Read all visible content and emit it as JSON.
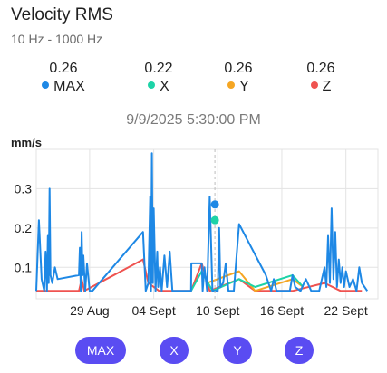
{
  "header": {
    "title": "Velocity RMS",
    "subtitle": "10 Hz - 1000 Hz"
  },
  "stats": [
    {
      "value": "0.26",
      "label": "MAX",
      "color": "#1e88e5"
    },
    {
      "value": "0.22",
      "label": "X",
      "color": "#1dd3a7"
    },
    {
      "value": "0.26",
      "label": "Y",
      "color": "#f5a623"
    },
    {
      "value": "0.26",
      "label": "Z",
      "color": "#ef5350"
    }
  ],
  "timestamp": "9/9/2025 5:30:00 PM",
  "unit_label": "mm/s",
  "buttons": [
    "MAX",
    "X",
    "Y",
    "Z"
  ],
  "chart_data": {
    "type": "line",
    "xlabel": "",
    "ylabel": "mm/s",
    "x_unit": "date (Aug–Sept 2025)",
    "xlim": [
      "2025-08-24",
      "2025-09-25"
    ],
    "ylim": [
      0.02,
      0.4
    ],
    "yticks": [
      0.1,
      0.2,
      0.3
    ],
    "ytick_labels": [
      "0.1",
      "0.2",
      "0.3"
    ],
    "xticks": [
      "2025-08-29",
      "2025-09-04",
      "2025-09-10",
      "2025-09-16",
      "2025-09-22"
    ],
    "xtick_labels": [
      "29 Aug",
      "04 Sept",
      "10 Sept",
      "16 Sept",
      "22 Sept"
    ],
    "grid": true,
    "legend": "none",
    "series": [
      {
        "name": "Z",
        "color": "#ef5350",
        "points": [
          [
            "2025-08-24T00:00",
            0.04
          ],
          [
            "2025-08-25T12:00",
            0.04
          ],
          [
            "2025-08-28T00:00",
            0.04
          ],
          [
            "2025-08-28T06:00",
            0.07
          ],
          [
            "2025-08-28T12:00",
            0.04
          ],
          [
            "2025-09-03T00:00",
            0.12
          ],
          [
            "2025-09-03T12:00",
            0.06
          ],
          [
            "2025-09-04T12:00",
            0.04
          ],
          [
            "2025-09-07T12:00",
            0.04
          ],
          [
            "2025-09-08T12:00",
            0.11
          ],
          [
            "2025-09-09T06:00",
            0.04
          ],
          [
            "2025-09-12T00:00",
            0.07
          ],
          [
            "2025-09-13T12:00",
            0.04
          ],
          [
            "2025-09-17T00:00",
            0.04
          ],
          [
            "2025-09-20T00:00",
            0.06
          ],
          [
            "2025-09-21T12:00",
            0.04
          ],
          [
            "2025-09-23T12:00",
            0.04
          ]
        ]
      },
      {
        "name": "Y",
        "color": "#f5a623",
        "points": [
          [
            "2025-09-09T00:00",
            0.06
          ],
          [
            "2025-09-12T00:00",
            0.09
          ],
          [
            "2025-09-13T12:00",
            0.04
          ],
          [
            "2025-09-17T00:00",
            0.07
          ],
          [
            "2025-09-18T00:00",
            0.05
          ]
        ]
      },
      {
        "name": "X",
        "color": "#1dd3a7",
        "points": [
          [
            "2025-09-07T12:00",
            0.04
          ],
          [
            "2025-09-08T12:00",
            0.09
          ],
          [
            "2025-09-09T12:00",
            0.04
          ],
          [
            "2025-09-12T00:00",
            0.07
          ],
          [
            "2025-09-13T12:00",
            0.05
          ],
          [
            "2025-09-17T00:00",
            0.08
          ],
          [
            "2025-09-18T00:00",
            0.05
          ]
        ]
      },
      {
        "name": "MAX",
        "color": "#1e88e5",
        "points": [
          [
            "2025-08-24T00:00",
            0.04
          ],
          [
            "2025-08-24T06:00",
            0.22
          ],
          [
            "2025-08-24T12:00",
            0.07
          ],
          [
            "2025-08-24T18:00",
            0.04
          ],
          [
            "2025-08-24T21:00",
            0.14
          ],
          [
            "2025-08-25T00:00",
            0.04
          ],
          [
            "2025-08-25T02:00",
            0.18
          ],
          [
            "2025-08-25T04:00",
            0.06
          ],
          [
            "2025-08-25T06:00",
            0.3
          ],
          [
            "2025-08-25T08:00",
            0.08
          ],
          [
            "2025-08-25T12:00",
            0.06
          ],
          [
            "2025-08-25T18:00",
            0.1
          ],
          [
            "2025-08-26T00:00",
            0.07
          ],
          [
            "2025-08-28T00:00",
            0.08
          ],
          [
            "2025-08-28T02:00",
            0.15
          ],
          [
            "2025-08-28T04:00",
            0.04
          ],
          [
            "2025-08-28T06:00",
            0.19
          ],
          [
            "2025-08-28T08:00",
            0.08
          ],
          [
            "2025-08-28T10:00",
            0.13
          ],
          [
            "2025-08-28T14:00",
            0.04
          ],
          [
            "2025-08-28T18:00",
            0.11
          ],
          [
            "2025-08-29T00:00",
            0.04
          ],
          [
            "2025-08-29T06:00",
            0.04
          ],
          [
            "2025-09-03T00:00",
            0.19
          ],
          [
            "2025-09-03T06:00",
            0.04
          ],
          [
            "2025-09-03T12:00",
            0.06
          ],
          [
            "2025-09-03T16:00",
            0.28
          ],
          [
            "2025-09-03T18:00",
            0.04
          ],
          [
            "2025-09-03T20:00",
            0.39
          ],
          [
            "2025-09-03T22:00",
            0.06
          ],
          [
            "2025-09-04T00:00",
            0.25
          ],
          [
            "2025-09-04T04:00",
            0.04
          ],
          [
            "2025-09-04T08:00",
            0.14
          ],
          [
            "2025-09-04T10:00",
            0.05
          ],
          [
            "2025-09-04T14:00",
            0.1
          ],
          [
            "2025-09-04T18:00",
            0.04
          ],
          [
            "2025-09-05T00:00",
            0.13
          ],
          [
            "2025-09-05T06:00",
            0.05
          ],
          [
            "2025-09-05T12:00",
            0.14
          ],
          [
            "2025-09-05T18:00",
            0.04
          ],
          [
            "2025-09-07T12:00",
            0.04
          ],
          [
            "2025-09-07T12:30",
            0.11
          ],
          [
            "2025-09-08T12:00",
            0.11
          ],
          [
            "2025-09-08T14:00",
            0.04
          ],
          [
            "2025-09-08T18:00",
            0.1
          ],
          [
            "2025-09-09T00:00",
            0.04
          ],
          [
            "2025-09-09T06:00",
            0.28
          ],
          [
            "2025-09-09T12:00",
            0.04
          ],
          [
            "2025-09-10T00:00",
            0.04
          ],
          [
            "2025-09-10T03:00",
            0.2
          ],
          [
            "2025-09-10T06:00",
            0.05
          ],
          [
            "2025-09-10T12:00",
            0.06
          ],
          [
            "2025-09-10T18:00",
            0.11
          ],
          [
            "2025-09-11T00:00",
            0.04
          ],
          [
            "2025-09-11T12:00",
            0.04
          ],
          [
            "2025-09-12T00:00",
            0.21
          ],
          [
            "2025-09-14T12:00",
            0.08
          ],
          [
            "2025-09-15T00:00",
            0.04
          ],
          [
            "2025-09-15T06:00",
            0.07
          ],
          [
            "2025-09-15T12:00",
            0.04
          ],
          [
            "2025-09-16T18:00",
            0.04
          ],
          [
            "2025-09-17T00:00",
            0.08
          ],
          [
            "2025-09-17T06:00",
            0.05
          ],
          [
            "2025-09-17T18:00",
            0.04
          ],
          [
            "2025-09-18T06:00",
            0.07
          ],
          [
            "2025-09-18T18:00",
            0.04
          ],
          [
            "2025-09-19T12:00",
            0.04
          ],
          [
            "2025-09-20T00:00",
            0.1
          ],
          [
            "2025-09-20T04:00",
            0.05
          ],
          [
            "2025-09-20T08:00",
            0.18
          ],
          [
            "2025-09-20T12:00",
            0.06
          ],
          [
            "2025-09-20T16:00",
            0.25
          ],
          [
            "2025-09-20T20:00",
            0.07
          ],
          [
            "2025-09-21T00:00",
            0.19
          ],
          [
            "2025-09-21T04:00",
            0.05
          ],
          [
            "2025-09-21T08:00",
            0.12
          ],
          [
            "2025-09-21T12:00",
            0.06
          ],
          [
            "2025-09-21T16:00",
            0.1
          ],
          [
            "2025-09-21T20:00",
            0.05
          ],
          [
            "2025-09-22T00:00",
            0.09
          ],
          [
            "2025-09-22T08:00",
            0.05
          ],
          [
            "2025-09-22T16:00",
            0.07
          ],
          [
            "2025-09-23T00:00",
            0.04
          ],
          [
            "2025-09-23T06:00",
            0.1
          ],
          [
            "2025-09-23T12:00",
            0.06
          ],
          [
            "2025-09-24T00:00",
            0.04
          ]
        ]
      }
    ],
    "highlight": {
      "x": "2025-09-09T17:30",
      "markers": [
        {
          "series": "MAX",
          "y": 0.26,
          "color": "#1e88e5"
        },
        {
          "series": "X",
          "y": 0.22,
          "color": "#1dd3a7"
        }
      ]
    }
  }
}
